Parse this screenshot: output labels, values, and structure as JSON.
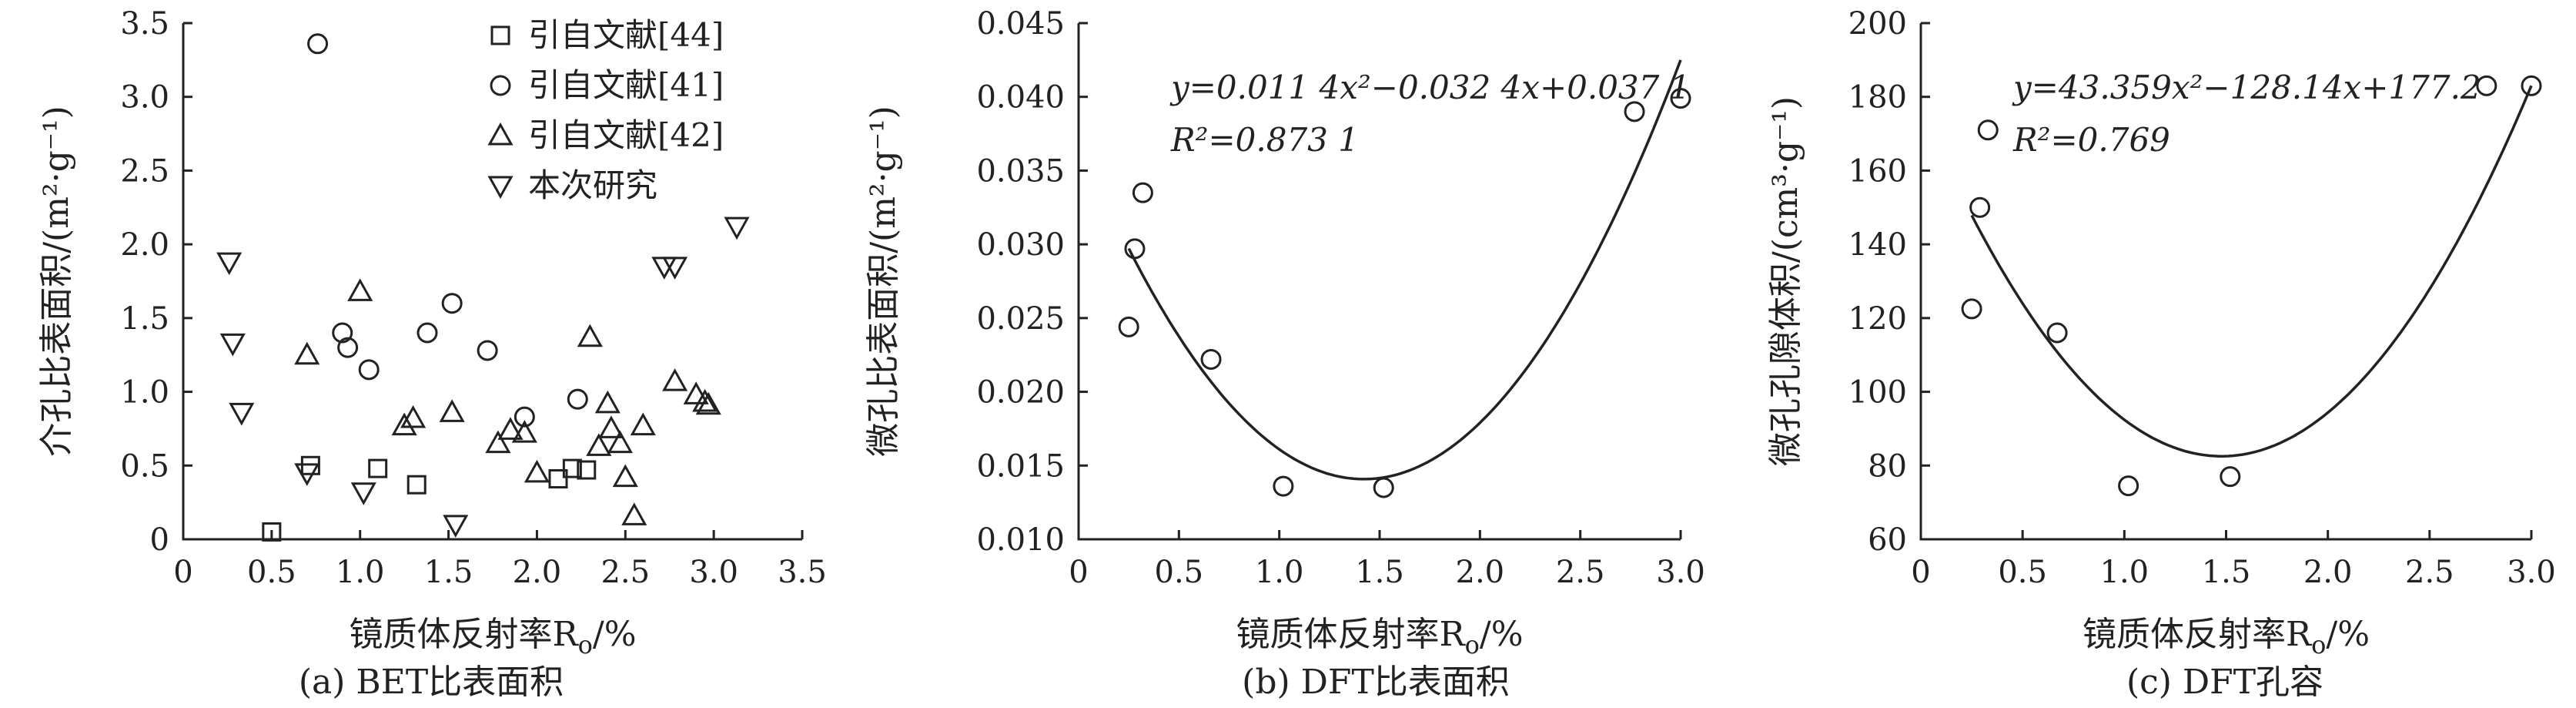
{
  "chart_data": [
    {
      "type": "scatter",
      "caption": "(a) BET比表面积",
      "xlabel": "镜质体反射率R",
      "xlabel_sub": "o",
      "xlabel_unit": "/%",
      "ylabel": "介孔比表面积/(m²·g⁻¹)",
      "xlim": [
        0,
        3.5
      ],
      "ylim": [
        0,
        3.5
      ],
      "xticks": [
        "0",
        "0.5",
        "1.0",
        "1.5",
        "2.0",
        "2.5",
        "3.0",
        "3.5"
      ],
      "yticks": [
        "0",
        "0.5",
        "1.0",
        "1.5",
        "2.0",
        "2.5",
        "3.0",
        "3.5"
      ],
      "legend_position": "top-right",
      "series": [
        {
          "name": "引自文献[44]",
          "marker": "square",
          "points": [
            [
              0.5,
              0.05
            ],
            [
              0.72,
              0.5
            ],
            [
              1.1,
              0.48
            ],
            [
              1.32,
              0.37
            ],
            [
              2.12,
              0.41
            ],
            [
              2.2,
              0.48
            ],
            [
              2.28,
              0.47
            ]
          ]
        },
        {
          "name": "引自文献[41]",
          "marker": "circle",
          "points": [
            [
              0.76,
              3.36
            ],
            [
              0.9,
              1.4
            ],
            [
              0.93,
              1.3
            ],
            [
              1.05,
              1.15
            ],
            [
              1.38,
              1.4
            ],
            [
              1.52,
              1.6
            ],
            [
              1.72,
              1.28
            ],
            [
              1.93,
              0.83
            ],
            [
              2.23,
              0.95
            ]
          ]
        },
        {
          "name": "引自文献[42]",
          "marker": "triangle-up",
          "points": [
            [
              0.7,
              1.25
            ],
            [
              1.0,
              1.68
            ],
            [
              1.25,
              0.77
            ],
            [
              1.3,
              0.82
            ],
            [
              1.52,
              0.86
            ],
            [
              1.78,
              0.65
            ],
            [
              1.85,
              0.74
            ],
            [
              1.93,
              0.72
            ],
            [
              2.0,
              0.45
            ],
            [
              2.3,
              1.37
            ],
            [
              2.35,
              0.63
            ],
            [
              2.4,
              0.92
            ],
            [
              2.42,
              0.75
            ],
            [
              2.47,
              0.65
            ],
            [
              2.5,
              0.42
            ],
            [
              2.55,
              0.16
            ],
            [
              2.6,
              0.77
            ],
            [
              2.78,
              1.07
            ],
            [
              2.9,
              0.98
            ],
            [
              2.95,
              0.93
            ],
            [
              2.97,
              0.91
            ]
          ]
        },
        {
          "name": "本次研究",
          "marker": "triangle-down",
          "points": [
            [
              0.26,
              1.88
            ],
            [
              0.28,
              1.33
            ],
            [
              0.33,
              0.86
            ],
            [
              0.7,
              0.45
            ],
            [
              1.02,
              0.32
            ],
            [
              1.54,
              0.1
            ],
            [
              2.72,
              1.85
            ],
            [
              2.78,
              1.85
            ],
            [
              3.13,
              2.12
            ]
          ]
        }
      ]
    },
    {
      "type": "scatter",
      "caption": "(b) DFT比表面积",
      "xlabel": "镜质体反射率R",
      "xlabel_sub": "o",
      "xlabel_unit": "/%",
      "ylabel": "微孔比表面积/(m²·g⁻¹)",
      "xlim": [
        0,
        3.0
      ],
      "ylim": [
        0.01,
        0.045
      ],
      "xticks": [
        "0",
        "0.5",
        "1.0",
        "1.5",
        "2.0",
        "2.5",
        "3.0"
      ],
      "yticks": [
        "0.010",
        "0.015",
        "0.020",
        "0.025",
        "0.030",
        "0.035",
        "0.040",
        "0.045"
      ],
      "equation": "y=0.011 4x²−0.032 4x+0.037 1",
      "r2": "R²=0.873 1",
      "fit": {
        "a": 0.0114,
        "b": -0.0324,
        "c": 0.0371,
        "xmin": 0.25,
        "xmax": 3.0
      },
      "series": [
        {
          "marker": "circle",
          "points": [
            [
              0.25,
              0.0244
            ],
            [
              0.28,
              0.0297
            ],
            [
              0.32,
              0.0335
            ],
            [
              0.66,
              0.0222
            ],
            [
              1.02,
              0.0136
            ],
            [
              1.52,
              0.0135
            ],
            [
              2.77,
              0.039
            ],
            [
              3.0,
              0.0399
            ]
          ]
        }
      ]
    },
    {
      "type": "scatter",
      "caption": "(c) DFT孔容",
      "xlabel": "镜质体反射率R",
      "xlabel_sub": "o",
      "xlabel_unit": "/%",
      "ylabel": "微孔孔隙体积/(cm³·g⁻¹)",
      "xlim": [
        0,
        3.0
      ],
      "ylim": [
        60,
        200
      ],
      "xticks": [
        "0",
        "0.5",
        "1.0",
        "1.5",
        "2.0",
        "2.5",
        "3.0"
      ],
      "yticks": [
        "60",
        "80",
        "100",
        "120",
        "140",
        "160",
        "180",
        "200"
      ],
      "equation": "y=43.359x²−128.14x+177.2",
      "r2": "R²=0.769",
      "fit": {
        "a": 43.359,
        "b": -128.14,
        "c": 177.2,
        "xmin": 0.25,
        "xmax": 3.0
      },
      "series": [
        {
          "marker": "circle",
          "points": [
            [
              0.25,
              122.5
            ],
            [
              0.29,
              150
            ],
            [
              0.33,
              171
            ],
            [
              0.67,
              116
            ],
            [
              1.02,
              74.5
            ],
            [
              1.52,
              77
            ],
            [
              2.78,
              183
            ],
            [
              3.0,
              183
            ]
          ]
        }
      ]
    }
  ]
}
